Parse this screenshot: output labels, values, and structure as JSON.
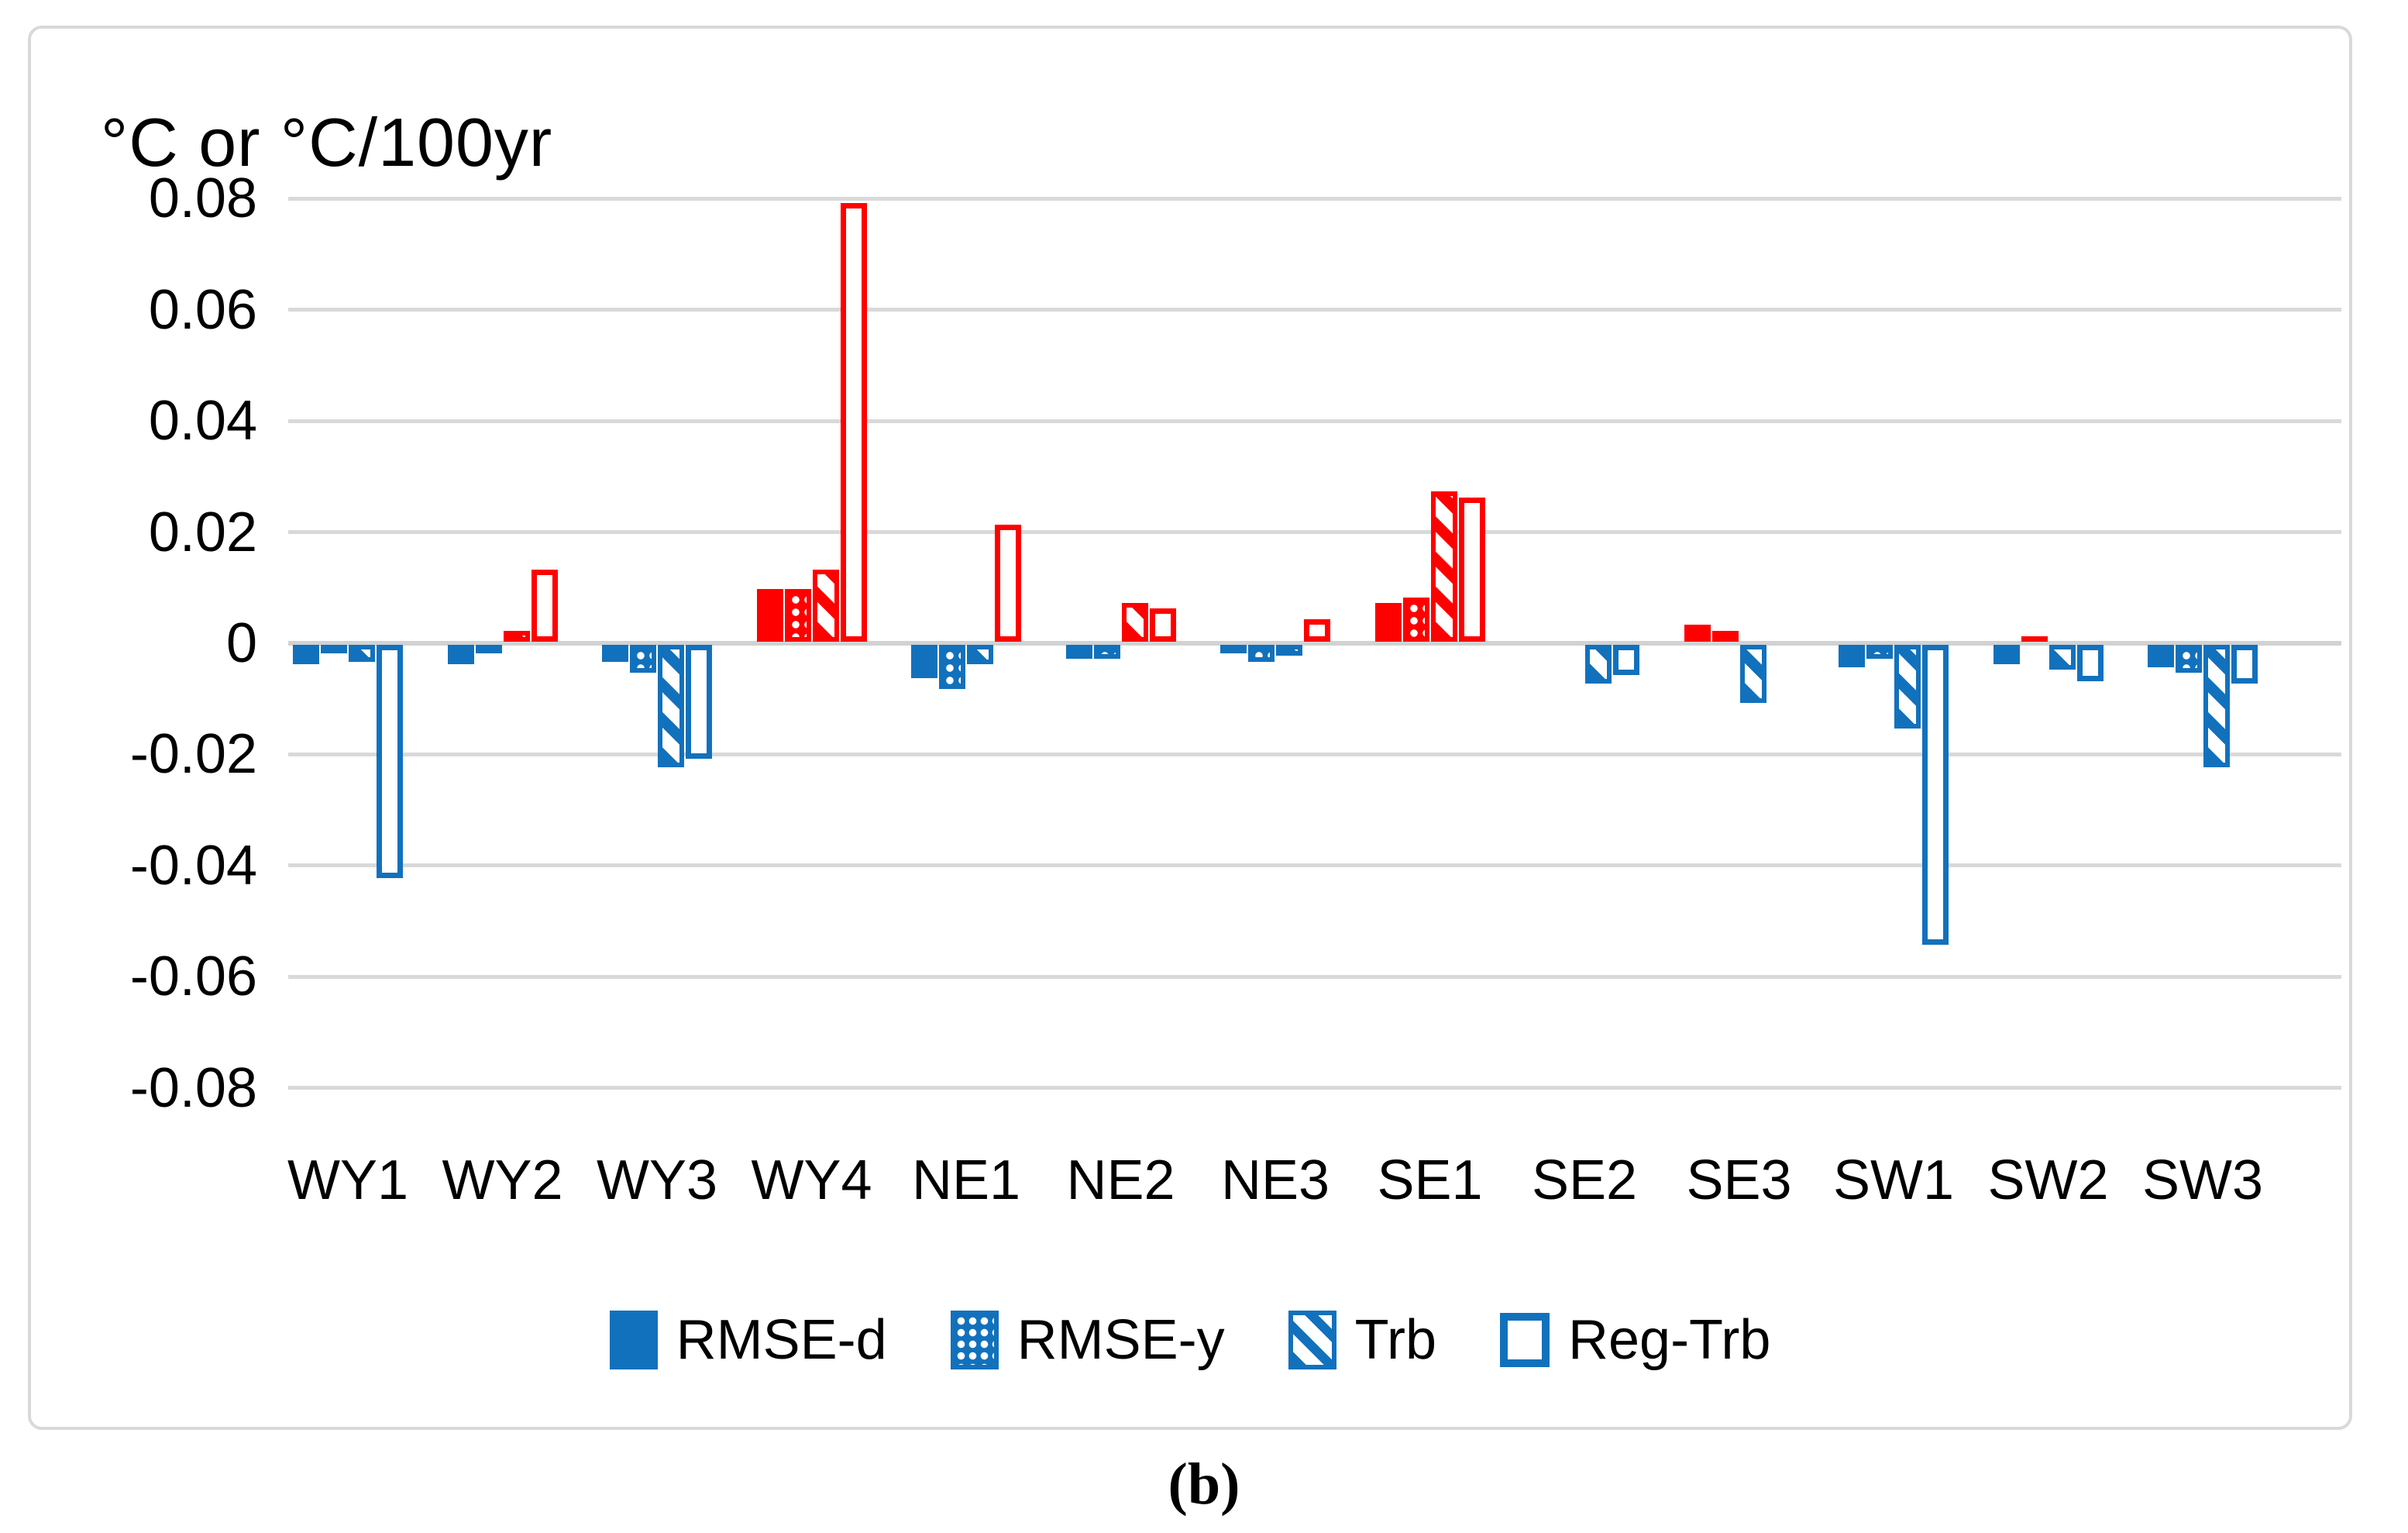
{
  "title": "°C or °C/100yr",
  "caption": "(b)",
  "colors": {
    "positive_red": "#FF0000",
    "negative_blue": "#1271BC",
    "gridline_gray": "#D9D9D9",
    "text_black": "#000000"
  },
  "chart_data": {
    "type": "bar",
    "title": "°C or °C/100yr",
    "xlabel": "",
    "ylabel": "°C or °C/100yr",
    "ylim": [
      -0.08,
      0.08
    ],
    "ytick_step": 0.02,
    "ytick_labels": [
      "0.08",
      "0.06",
      "0.04",
      "0.02",
      "0",
      "-0.02",
      "-0.04",
      "-0.06",
      "-0.08"
    ],
    "grid": true,
    "legend_position": "bottom",
    "color_rule": "red if value > 0, blue if value < 0",
    "categories": [
      "WY1",
      "WY2",
      "WY3",
      "WY4",
      "NE1",
      "NE2",
      "NE3",
      "SE1",
      "SE2",
      "SE3",
      "SW1",
      "SW2",
      "SW3"
    ],
    "series": [
      {
        "name": "RMSE-d",
        "pattern": "solid",
        "values": [
          -0.0035,
          -0.0035,
          -0.003,
          0.0095,
          -0.006,
          -0.0025,
          -0.0015,
          0.007,
          0,
          0.003,
          -0.004,
          -0.0035,
          -0.004
        ]
      },
      {
        "name": "RMSE-y",
        "pattern": "dots",
        "values": [
          -0.0015,
          -0.0015,
          -0.005,
          0.0095,
          -0.008,
          -0.0025,
          -0.003,
          0.008,
          0,
          0.002,
          -0.0025,
          0.001,
          -0.005
        ]
      },
      {
        "name": "Trb",
        "pattern": "diagonal-hatch",
        "values": [
          -0.003,
          0.002,
          -0.022,
          0.013,
          -0.0035,
          0.007,
          -0.002,
          0.027,
          -0.007,
          -0.0105,
          -0.015,
          -0.0045,
          -0.022
        ]
      },
      {
        "name": "Reg-Trb",
        "pattern": "hollow",
        "values": [
          -0.042,
          0.013,
          -0.0205,
          0.079,
          0.021,
          0.006,
          0.004,
          0.026,
          -0.0055,
          0,
          -0.054,
          -0.0065,
          -0.007
        ]
      }
    ]
  },
  "legend": {
    "items": [
      "RMSE-d",
      "RMSE-y",
      "Trb",
      "Reg-Trb"
    ]
  }
}
